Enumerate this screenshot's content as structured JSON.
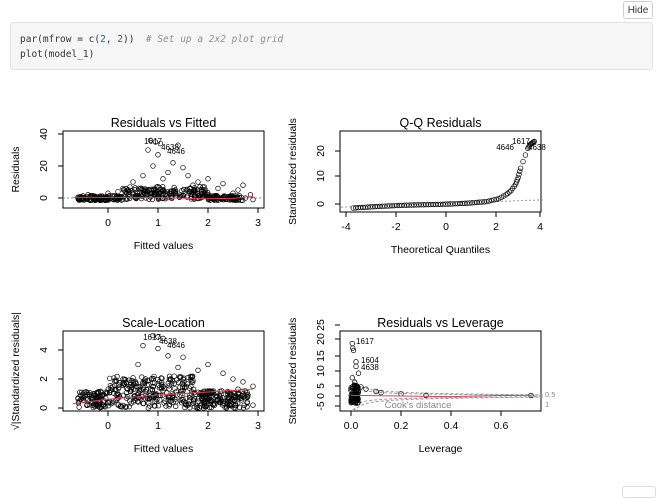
{
  "toolbar": {
    "hide_label": "Hide"
  },
  "code": {
    "line1": {
      "pre": "par(mfrow = c(",
      "n1": "2",
      "sep": ", ",
      "n2": "2",
      "post": "))  ",
      "comment": "# Set up a 2x2 plot grid"
    },
    "line2": "plot(model_1)"
  },
  "chart_data": [
    {
      "type": "scatter",
      "title": "Residuals vs Fitted",
      "xlabel": "Fitted values",
      "ylabel": "Residuals",
      "xlim": [
        -0.8,
        3.1
      ],
      "ylim": [
        -3,
        42
      ],
      "xticks": [
        "0",
        "1",
        "2",
        "3"
      ],
      "yticks": [
        "0",
        "20",
        "40"
      ],
      "annotations": [
        "1617",
        "4638",
        "4646"
      ],
      "points": [
        [
          0.85,
          36
        ],
        [
          0.95,
          35
        ],
        [
          1.05,
          34
        ],
        [
          0.8,
          30
        ],
        [
          1.4,
          33
        ],
        [
          1.0,
          27
        ],
        [
          1.3,
          22
        ],
        [
          0.9,
          20
        ],
        [
          1.5,
          19
        ],
        [
          1.2,
          16
        ],
        [
          2.0,
          12
        ],
        [
          2.3,
          9
        ],
        [
          2.7,
          8
        ],
        [
          1.8,
          10
        ],
        [
          1.1,
          12
        ],
        [
          0.7,
          14
        ],
        [
          0.5,
          10
        ],
        [
          1.6,
          14
        ],
        [
          1.9,
          7
        ],
        [
          2.2,
          6
        ],
        [
          2.6,
          5
        ],
        [
          0.3,
          6
        ],
        [
          0.0,
          3
        ],
        [
          -0.4,
          2
        ],
        [
          -0.6,
          0.5
        ],
        [
          0.2,
          4
        ],
        [
          1.7,
          8
        ],
        [
          2.5,
          3
        ],
        [
          2.85,
          2
        ],
        [
          2.9,
          -1
        ],
        [
          2.75,
          0
        ]
      ],
      "smoother": [
        [
          -0.7,
          0.5
        ],
        [
          0,
          0.4
        ],
        [
          1,
          0.2
        ],
        [
          2,
          -0.5
        ],
        [
          2.5,
          -0.2
        ],
        [
          2.9,
          1.0
        ]
      ]
    },
    {
      "type": "scatter",
      "title": "Q-Q Residuals",
      "xlabel": "Theoretical Quantiles",
      "ylabel": "Standardized residuals",
      "xlim": [
        -4.2,
        4.2
      ],
      "ylim": [
        -3,
        26
      ],
      "xticks": [
        "-4",
        "-2",
        "0",
        "2",
        "4"
      ],
      "yticks": [
        "0",
        "10",
        "20"
      ],
      "annotations": [
        "1617",
        "4646",
        "4638"
      ],
      "curve": [
        [
          -3.7,
          -1.5
        ],
        [
          -3,
          -1.1
        ],
        [
          -2,
          -0.6
        ],
        [
          -1,
          -0.3
        ],
        [
          0,
          -0.1
        ],
        [
          1,
          0.3
        ],
        [
          1.8,
          0.9
        ],
        [
          2.3,
          2.0
        ],
        [
          2.6,
          3.5
        ],
        [
          2.8,
          5.0
        ],
        [
          3.0,
          7.5
        ],
        [
          3.1,
          10
        ],
        [
          3.2,
          13.5
        ],
        [
          3.5,
          21
        ],
        [
          3.6,
          22.5
        ],
        [
          3.7,
          23.2
        ],
        [
          3.8,
          23.8
        ]
      ],
      "reference_line": [
        [
          -4.2,
          -1.2
        ],
        [
          4.2,
          1.6
        ]
      ]
    },
    {
      "type": "scatter",
      "title": "Scale-Location",
      "xlabel": "Fitted values",
      "ylabel": "√|Standardized residuals|",
      "xlim": [
        -0.8,
        3.1
      ],
      "ylim": [
        -0.3,
        5.7
      ],
      "xticks": [
        "0",
        "1",
        "2",
        "3"
      ],
      "yticks": [
        "0",
        "2",
        "4"
      ],
      "annotations": [
        "1617",
        "4638",
        "4646"
      ],
      "points": [
        [
          0.9,
          5.0
        ],
        [
          1.0,
          4.9
        ],
        [
          1.1,
          4.8
        ],
        [
          0.7,
          4.3
        ],
        [
          1.0,
          4.1
        ],
        [
          1.2,
          3.6
        ],
        [
          1.5,
          3.5
        ],
        [
          2.0,
          3.0
        ],
        [
          2.3,
          2.4
        ],
        [
          1.8,
          2.6
        ],
        [
          1.4,
          2.8
        ],
        [
          0.6,
          3.0
        ],
        [
          2.5,
          2.0
        ],
        [
          2.7,
          1.8
        ],
        [
          2.9,
          1.5
        ],
        [
          2.6,
          1.3
        ],
        [
          2.8,
          0.9
        ],
        [
          2.2,
          0.6
        ],
        [
          -0.6,
          0.7
        ],
        [
          -0.4,
          0.6
        ],
        [
          0.3,
          2.0
        ],
        [
          1.6,
          2.1
        ],
        [
          2.9,
          0.2
        ]
      ],
      "smoother": [
        [
          -0.7,
          0.3
        ],
        [
          0,
          0.6
        ],
        [
          1,
          0.9
        ],
        [
          2,
          1.1
        ],
        [
          2.9,
          1.3
        ]
      ]
    },
    {
      "type": "scatter",
      "title": "Residuals vs Leverage",
      "xlabel": "Leverage",
      "ylabel": "Standardized residuals",
      "xlim": [
        -0.03,
        0.8
      ],
      "ylim": [
        -5,
        27
      ],
      "xticks": [
        "0.0",
        "0.2",
        "0.4",
        "0.6"
      ],
      "yticks": [
        "-5",
        "0",
        "5",
        "10",
        "15",
        "20",
        "25"
      ],
      "annotations": [
        "1617",
        "1604",
        "4638",
        "Cook's distance"
      ],
      "contour_labels": [
        "0.5",
        "1"
      ],
      "points": [
        [
          0.005,
          23
        ],
        [
          0.007,
          21
        ],
        [
          0.01,
          20
        ],
        [
          0.02,
          15
        ],
        [
          0.02,
          13
        ],
        [
          0.03,
          10
        ],
        [
          0.005,
          8
        ],
        [
          0.015,
          6
        ],
        [
          0.04,
          4
        ],
        [
          0.06,
          3
        ],
        [
          0.1,
          2
        ],
        [
          0.12,
          1.5
        ],
        [
          0.2,
          1
        ],
        [
          0.3,
          0.3
        ],
        [
          0.72,
          0.2
        ]
      ],
      "smoother": [
        [
          0,
          0.3
        ],
        [
          0.2,
          0
        ],
        [
          0.4,
          -0.3
        ],
        [
          0.6,
          0.2
        ],
        [
          0.72,
          0.3
        ]
      ]
    }
  ]
}
